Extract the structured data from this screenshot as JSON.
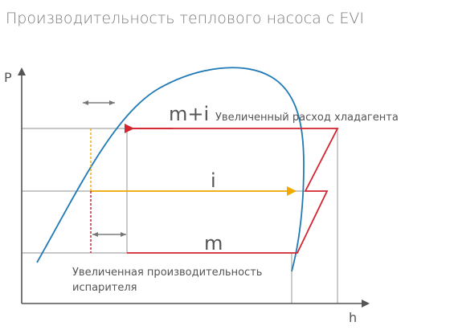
{
  "title": "Производительность теплового насоса с EVI",
  "axes": {
    "y_label": "P",
    "x_label": "h"
  },
  "labels": {
    "flow_mi": "m+i",
    "flow_i": "i",
    "flow_m": "m",
    "increased_flow": "Увеличенный расход хладагента",
    "increased_evap_line1": "Увеличенная производительность",
    "increased_evap_line2": "испарителя"
  },
  "colors": {
    "saturation_curve": "#1f7ab5",
    "main_cycle": "#d3242f",
    "injection": "#f2a900",
    "reference_lines": "#a8a8a8",
    "axis": "#555555"
  }
}
